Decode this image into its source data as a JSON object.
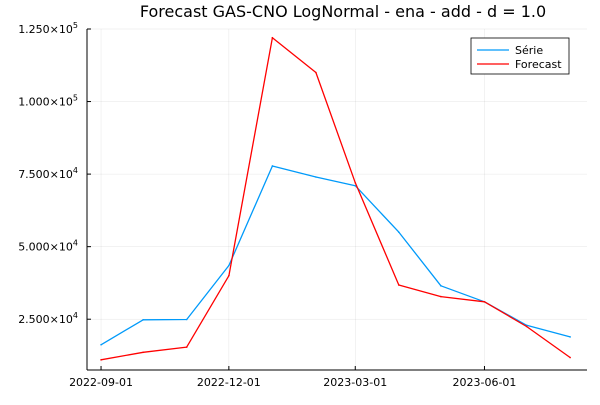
{
  "chart_data": {
    "type": "line",
    "title": "Forecast GAS-CNO LogNormal - ena - add - d = 1.0",
    "xlabel": "",
    "ylabel": "",
    "x": [
      "2022-09-01",
      "2022-10-01",
      "2022-11-01",
      "2022-12-01",
      "2023-01-01",
      "2023-02-01",
      "2023-03-01",
      "2023-04-01",
      "2023-05-01",
      "2023-06-01",
      "2023-07-01",
      "2023-08-01"
    ],
    "xlim": [
      "2022-08-22",
      "2023-08-13"
    ],
    "ylim": [
      7500,
      125000
    ],
    "x_ticks": [
      {
        "date": "2022-09-01",
        "label": "2022-09-01"
      },
      {
        "date": "2022-12-01",
        "label": "2022-12-01"
      },
      {
        "date": "2023-03-01",
        "label": "2023-03-01"
      },
      {
        "date": "2023-06-01",
        "label": "2023-06-01"
      }
    ],
    "y_ticks": [
      {
        "value": 25000,
        "mantissa": "2.500",
        "exp": "4"
      },
      {
        "value": 50000,
        "mantissa": "5.000",
        "exp": "4"
      },
      {
        "value": 75000,
        "mantissa": "7.500",
        "exp": "4"
      },
      {
        "value": 100000,
        "mantissa": "1.000",
        "exp": "5"
      },
      {
        "value": 125000,
        "mantissa": "1.250",
        "exp": "5"
      }
    ],
    "tick_times": "×10",
    "grid": true,
    "legend": "top-right",
    "series": [
      {
        "name": "Série",
        "color": "#009AFA",
        "values": [
          16200,
          24800,
          24900,
          43500,
          77800,
          74000,
          71000,
          55000,
          36500,
          31000,
          22900,
          18900
        ]
      },
      {
        "name": "Forecast",
        "color": "#FF0000",
        "values": [
          11000,
          13600,
          15400,
          40000,
          122000,
          110000,
          72000,
          36800,
          32800,
          31000,
          22500,
          11800
        ]
      }
    ]
  }
}
